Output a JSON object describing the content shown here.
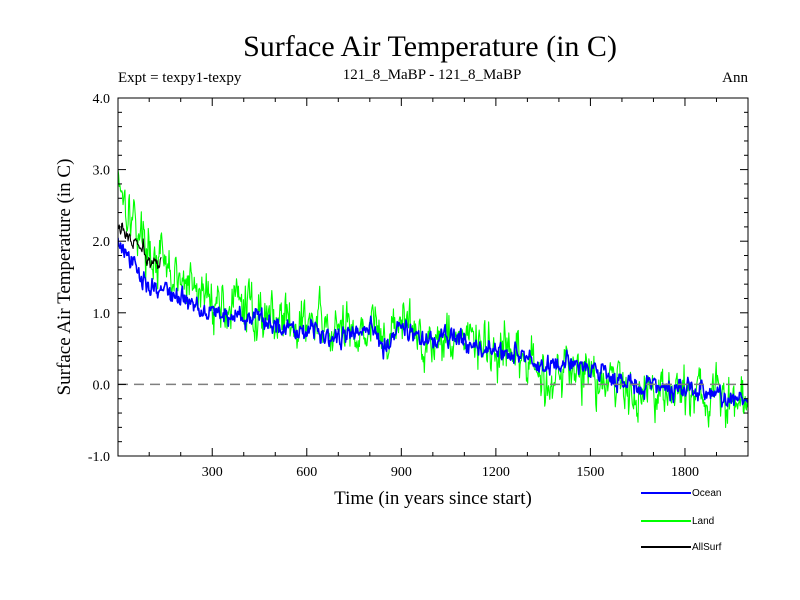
{
  "chart_data": {
    "type": "line",
    "title": "Surface Air Temperature (in C)",
    "subtitle_left": "Expt = texpy1-texpy",
    "subtitle_center": "121_8_MaBP - 121_8_MaBP",
    "subtitle_right": "Ann",
    "xlabel": "Time (in years since start)",
    "ylabel": "Surface Air Temperature (in C)",
    "xlim": [
      1,
      2000
    ],
    "ylim": [
      -1.0,
      4.0
    ],
    "xticks": [
      300,
      600,
      900,
      1200,
      1500,
      1800
    ],
    "yticks": [
      "-1.0",
      "0.0",
      "1.0",
      "2.0",
      "3.0",
      "4.0"
    ],
    "reference_line": {
      "y": 0.0,
      "style": "dashed",
      "color": "#7f7f7f"
    },
    "legend_position": "below-right",
    "series": [
      {
        "name": "Land",
        "color": "#00ff00",
        "x": [
          1,
          25,
          50,
          75,
          100,
          125,
          150,
          175,
          200,
          250,
          300,
          350,
          400,
          450,
          500,
          550,
          600,
          650,
          700,
          750,
          800,
          850,
          900,
          950,
          1000,
          1050,
          1100,
          1150,
          1200,
          1250,
          1300,
          1350,
          1400,
          1450,
          1500,
          1550,
          1600,
          1650,
          1700,
          1750,
          1800,
          1850,
          1900,
          1950,
          2000
        ],
        "y": [
          3.0,
          2.6,
          2.3,
          2.1,
          1.9,
          1.75,
          1.6,
          1.5,
          1.4,
          1.3,
          1.2,
          1.1,
          1.1,
          1.0,
          0.95,
          0.9,
          0.85,
          0.8,
          0.7,
          0.75,
          0.85,
          0.6,
          0.9,
          0.7,
          0.6,
          0.7,
          0.65,
          0.55,
          0.4,
          0.35,
          0.3,
          0.1,
          0.15,
          0.25,
          0.2,
          0.1,
          0.0,
          -0.1,
          0.0,
          -0.1,
          -0.1,
          -0.15,
          -0.2,
          -0.3,
          -0.25
        ],
        "noise": 0.45
      },
      {
        "name": "Ocean",
        "color": "#0000ff",
        "x": [
          1,
          25,
          50,
          75,
          100,
          125,
          150,
          175,
          200,
          250,
          300,
          350,
          400,
          450,
          500,
          550,
          600,
          650,
          700,
          750,
          800,
          850,
          900,
          950,
          1000,
          1050,
          1100,
          1150,
          1200,
          1250,
          1300,
          1350,
          1400,
          1450,
          1500,
          1550,
          1600,
          1650,
          1700,
          1750,
          1800,
          1850,
          1900,
          1950,
          2000
        ],
        "y": [
          2.0,
          1.8,
          1.65,
          1.5,
          1.4,
          1.35,
          1.3,
          1.25,
          1.2,
          1.1,
          1.05,
          0.95,
          0.95,
          0.9,
          0.85,
          0.8,
          0.78,
          0.75,
          0.65,
          0.7,
          0.8,
          0.55,
          0.85,
          0.65,
          0.6,
          0.65,
          0.6,
          0.5,
          0.45,
          0.45,
          0.35,
          0.2,
          0.25,
          0.3,
          0.25,
          0.15,
          0.05,
          -0.05,
          0.0,
          -0.1,
          -0.05,
          -0.1,
          -0.15,
          -0.25,
          -0.2
        ],
        "noise": 0.18
      },
      {
        "name": "AllSurf",
        "color": "#000000",
        "x": [
          1,
          20,
          40,
          60,
          80,
          100,
          120,
          140
        ],
        "y": [
          2.2,
          2.15,
          2.0,
          1.95,
          1.85,
          1.75,
          1.7,
          1.6
        ],
        "noise": 0.15
      }
    ]
  }
}
